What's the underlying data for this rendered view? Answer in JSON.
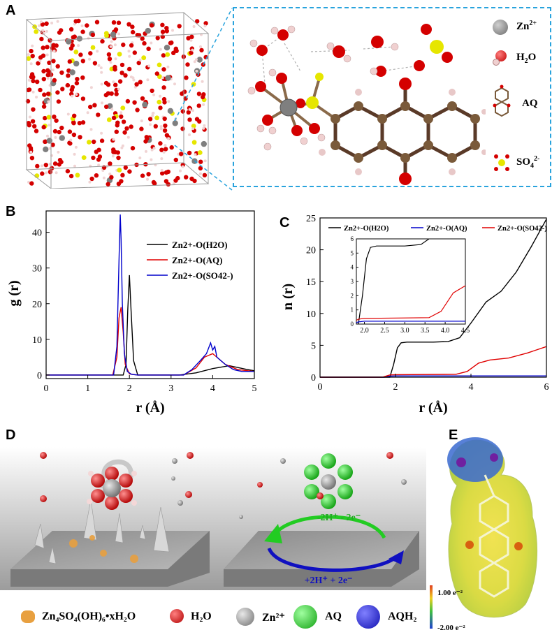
{
  "panels": {
    "A": "A",
    "B": "B",
    "C": "C",
    "D": "D",
    "E": "E"
  },
  "panelA": {
    "legend": [
      {
        "key": "zn",
        "label": "Zn",
        "sup": "2+",
        "color": "#7f7f7f"
      },
      {
        "key": "h2o",
        "label": "H",
        "sub": "2",
        "tail": "O",
        "color": "#d40000"
      },
      {
        "key": "aq",
        "label": "AQ",
        "color": "#7a5a3a"
      },
      {
        "key": "so4",
        "label": "SO",
        "sub": "4",
        "sup": "2-",
        "color": "#e6e600"
      }
    ]
  },
  "chart_data": [
    {
      "panel": "B",
      "type": "line",
      "xlabel": "r (Å)",
      "ylabel": "g (r)",
      "xlim": [
        0,
        5
      ],
      "ylim": [
        -1,
        46
      ],
      "xticks": [
        0,
        1,
        2,
        3,
        4,
        5
      ],
      "yticks": [
        0,
        10,
        20,
        30,
        40
      ],
      "legend_position": "top-right",
      "series": [
        {
          "name": "Zn2+-O(H2O)",
          "color": "#000000",
          "x": [
            0,
            1.85,
            1.92,
            1.96,
            2.0,
            2.04,
            2.1,
            2.2,
            3.2,
            3.6,
            4.0,
            4.4,
            4.8,
            5.0
          ],
          "y": [
            0,
            0,
            3,
            18,
            28,
            18,
            4,
            0,
            0,
            0.6,
            1.8,
            2.6,
            1.6,
            1.2
          ]
        },
        {
          "name": "Zn2+-O(AQ)",
          "color": "#e00000",
          "x": [
            0,
            1.6,
            1.7,
            1.75,
            1.8,
            1.85,
            1.9,
            2.0,
            2.2,
            3.3,
            3.6,
            3.8,
            4.0,
            4.1,
            4.3,
            4.6,
            5.0
          ],
          "y": [
            0,
            0,
            5,
            16,
            19,
            12,
            3,
            0.3,
            0,
            0,
            2,
            5,
            6,
            5,
            3,
            1.5,
            1
          ]
        },
        {
          "name": "Zn2+-O(SO42-)",
          "color": "#0000cc",
          "x": [
            0,
            1.62,
            1.7,
            1.75,
            1.78,
            1.8,
            1.83,
            1.88,
            1.95,
            2.05,
            2.2,
            3.3,
            3.5,
            3.7,
            3.85,
            3.95,
            4.0,
            4.05,
            4.1,
            4.2,
            4.3,
            4.5,
            4.7,
            5.0
          ],
          "y": [
            0,
            0,
            8,
            32,
            45,
            38,
            20,
            6,
            1,
            0.2,
            0,
            0,
            1.5,
            4,
            6,
            9,
            7,
            8,
            5,
            4,
            3,
            1.5,
            1,
            1
          ]
        }
      ]
    },
    {
      "panel": "C",
      "type": "line",
      "xlabel": "r (Å)",
      "ylabel": "n (r)",
      "xlim": [
        0,
        6
      ],
      "ylim": [
        0,
        25
      ],
      "xticks": [
        0,
        2,
        4,
        6
      ],
      "yticks": [
        0,
        5,
        10,
        15,
        20,
        25
      ],
      "legend_position": "top",
      "series": [
        {
          "name": "Zn2+-O(H2O)",
          "color": "#000000",
          "x": [
            0,
            1.85,
            1.95,
            2.05,
            2.15,
            2.3,
            3.0,
            3.4,
            3.7,
            4.0,
            4.4,
            4.8,
            5.2,
            5.6,
            6.0
          ],
          "y": [
            0,
            0,
            2,
            4.6,
            5.4,
            5.5,
            5.5,
            5.6,
            6.2,
            8.5,
            11.8,
            13.5,
            16.5,
            20.5,
            24.8
          ]
        },
        {
          "name": "Zn2+-O(AQ)",
          "color": "#0000cc",
          "x": [
            0,
            1.7,
            1.85,
            2.0,
            6.0
          ],
          "y": [
            0,
            0,
            0.15,
            0.2,
            0.2
          ]
        },
        {
          "name": "Zn2+-O(SO42-)",
          "color": "#e00000",
          "x": [
            0,
            1.65,
            1.85,
            2.0,
            3.6,
            3.9,
            4.2,
            4.5,
            5.0,
            5.5,
            6.0
          ],
          "y": [
            0,
            0,
            0.35,
            0.4,
            0.45,
            0.9,
            2.2,
            2.7,
            3.0,
            3.8,
            4.8
          ]
        }
      ],
      "inset": {
        "xlim": [
          1.8,
          4.5
        ],
        "ylim": [
          0,
          6
        ],
        "xticks": [
          2.0,
          2.5,
          3.0,
          3.5,
          4.0,
          4.5
        ],
        "yticks": [
          0,
          1,
          2,
          3,
          4,
          5,
          6
        ]
      }
    }
  ],
  "panelD": {
    "arrow_top": "-2H⁺ - 2e⁻",
    "arrow_bottom": "+2H⁺ + 2e⁻",
    "legend": [
      {
        "key": "basic-salt",
        "label": "Zn₄SO₄(OH)₆•xH₂O"
      },
      {
        "key": "h2o",
        "label": "H₂O"
      },
      {
        "key": "zn",
        "label": "Zn²⁺"
      },
      {
        "key": "aq",
        "label": "AQ"
      },
      {
        "key": "aqh2",
        "label": "AQH₂"
      }
    ]
  },
  "panelE": {
    "scale_max": "1.00 e⁻²",
    "scale_min": "-2.00 e⁻²"
  }
}
